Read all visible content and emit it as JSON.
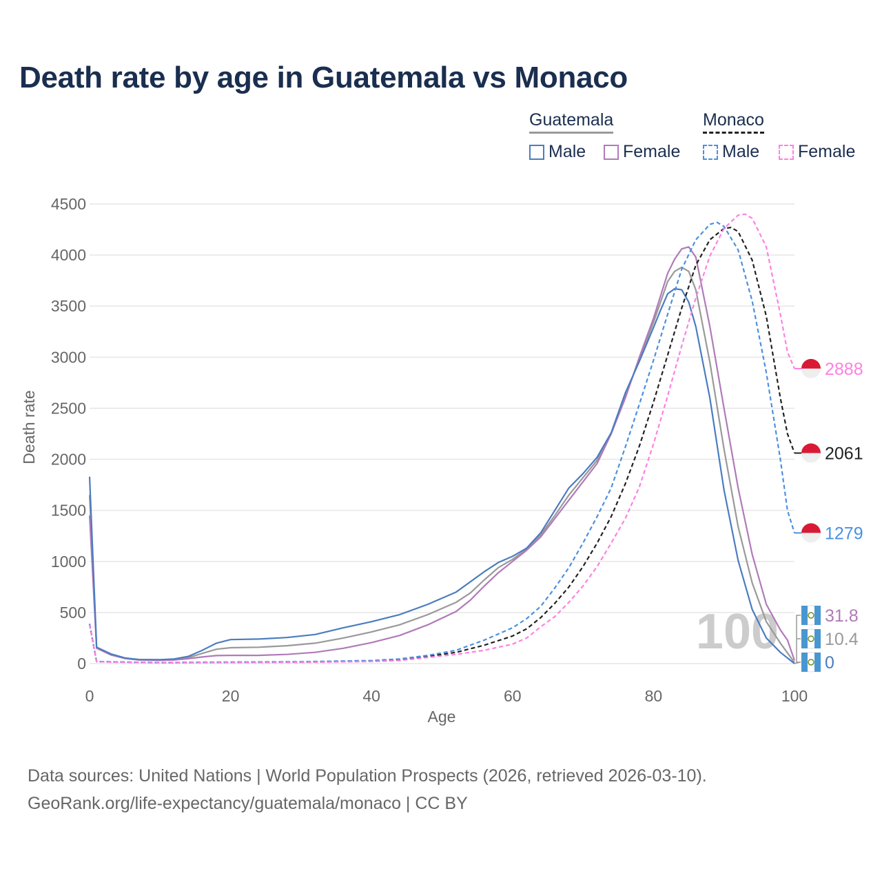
{
  "header": {
    "title": "Death rate by age in Guatemala vs Monaco"
  },
  "legend": {
    "guatemala": {
      "title": "Guatemala",
      "male": "Male",
      "female": "Female"
    },
    "monaco": {
      "title": "Monaco",
      "male": "Male",
      "female": "Female"
    }
  },
  "colors": {
    "gt_male": "#4a7cc0",
    "gt_female": "#b07ab8",
    "gt_total": "#999999",
    "mc_male": "#4a90e2",
    "mc_female": "#ff80e0",
    "mc_total": "#222222",
    "title": "#1a2e4f",
    "axis_text": "#666666",
    "grid": "#e6e6e6",
    "watermark": "#cccccc",
    "flag_mc_red": "#d91a36",
    "flag_gt_blue": "#4997d0"
  },
  "watermark": "100",
  "footer": {
    "line1": "Data sources: United Nations | World Population Prospects (2026, retrieved 2026-03-10).",
    "line2": "GeoRank.org/life-expectancy/guatemala/monaco | CC BY"
  },
  "chart_data": {
    "type": "line",
    "title": "Death rate by age in Guatemala vs Monaco",
    "xlabel": "Age",
    "ylabel": "Death rate",
    "xlim": [
      0,
      100
    ],
    "ylim": [
      0,
      4500
    ],
    "xticks": [
      0,
      20,
      40,
      60,
      80,
      100
    ],
    "yticks": [
      0,
      500,
      1000,
      1500,
      2000,
      2500,
      3000,
      3500,
      4000,
      4500
    ],
    "grid": true,
    "series": [
      {
        "name": "Guatemala Male",
        "country": "guatemala",
        "sex": "male",
        "dashed": false,
        "color": "#4a7cc0",
        "end_label": "0",
        "points": [
          [
            0,
            1830
          ],
          [
            1,
            160
          ],
          [
            3,
            95
          ],
          [
            5,
            55
          ],
          [
            7,
            40
          ],
          [
            10,
            38
          ],
          [
            12,
            45
          ],
          [
            14,
            70
          ],
          [
            16,
            130
          ],
          [
            18,
            200
          ],
          [
            20,
            235
          ],
          [
            24,
            240
          ],
          [
            28,
            255
          ],
          [
            32,
            285
          ],
          [
            36,
            350
          ],
          [
            40,
            410
          ],
          [
            44,
            480
          ],
          [
            48,
            580
          ],
          [
            52,
            700
          ],
          [
            56,
            900
          ],
          [
            58,
            990
          ],
          [
            60,
            1050
          ],
          [
            62,
            1130
          ],
          [
            64,
            1280
          ],
          [
            66,
            1500
          ],
          [
            68,
            1720
          ],
          [
            70,
            1860
          ],
          [
            72,
            2020
          ],
          [
            74,
            2260
          ],
          [
            76,
            2650
          ],
          [
            78,
            2960
          ],
          [
            80,
            3290
          ],
          [
            81,
            3460
          ],
          [
            82,
            3620
          ],
          [
            83,
            3670
          ],
          [
            84,
            3660
          ],
          [
            85,
            3540
          ],
          [
            86,
            3300
          ],
          [
            88,
            2600
          ],
          [
            90,
            1700
          ],
          [
            92,
            1010
          ],
          [
            94,
            530
          ],
          [
            96,
            250
          ],
          [
            98,
            110
          ],
          [
            100,
            0
          ]
        ]
      },
      {
        "name": "Guatemala Female",
        "country": "guatemala",
        "sex": "female",
        "dashed": false,
        "color": "#b07ab8",
        "end_label": "31.8",
        "points": [
          [
            0,
            1450
          ],
          [
            1,
            150
          ],
          [
            3,
            85
          ],
          [
            5,
            50
          ],
          [
            7,
            35
          ],
          [
            10,
            32
          ],
          [
            12,
            35
          ],
          [
            14,
            48
          ],
          [
            16,
            65
          ],
          [
            18,
            78
          ],
          [
            20,
            80
          ],
          [
            24,
            80
          ],
          [
            28,
            90
          ],
          [
            32,
            110
          ],
          [
            36,
            150
          ],
          [
            40,
            205
          ],
          [
            44,
            275
          ],
          [
            48,
            380
          ],
          [
            52,
            510
          ],
          [
            54,
            620
          ],
          [
            56,
            760
          ],
          [
            58,
            890
          ],
          [
            60,
            1000
          ],
          [
            62,
            1110
          ],
          [
            64,
            1240
          ],
          [
            66,
            1420
          ],
          [
            68,
            1600
          ],
          [
            70,
            1780
          ],
          [
            72,
            1960
          ],
          [
            74,
            2250
          ],
          [
            76,
            2600
          ],
          [
            78,
            3000
          ],
          [
            80,
            3380
          ],
          [
            82,
            3820
          ],
          [
            83,
            3960
          ],
          [
            84,
            4060
          ],
          [
            85,
            4080
          ],
          [
            86,
            3980
          ],
          [
            88,
            3300
          ],
          [
            90,
            2500
          ],
          [
            92,
            1720
          ],
          [
            94,
            1070
          ],
          [
            96,
            580
          ],
          [
            98,
            330
          ],
          [
            99,
            230
          ],
          [
            100,
            32
          ]
        ]
      },
      {
        "name": "Guatemala Total",
        "country": "guatemala",
        "sex": "total",
        "dashed": false,
        "color": "#999999",
        "end_label": "10.4",
        "points": [
          [
            0,
            1650
          ],
          [
            1,
            155
          ],
          [
            3,
            90
          ],
          [
            5,
            52
          ],
          [
            7,
            37
          ],
          [
            10,
            35
          ],
          [
            12,
            40
          ],
          [
            14,
            58
          ],
          [
            16,
            100
          ],
          [
            18,
            140
          ],
          [
            20,
            155
          ],
          [
            24,
            160
          ],
          [
            28,
            175
          ],
          [
            32,
            200
          ],
          [
            36,
            250
          ],
          [
            40,
            310
          ],
          [
            44,
            380
          ],
          [
            48,
            480
          ],
          [
            52,
            600
          ],
          [
            54,
            690
          ],
          [
            56,
            820
          ],
          [
            58,
            940
          ],
          [
            60,
            1020
          ],
          [
            62,
            1120
          ],
          [
            64,
            1260
          ],
          [
            66,
            1450
          ],
          [
            68,
            1650
          ],
          [
            70,
            1820
          ],
          [
            72,
            1990
          ],
          [
            74,
            2250
          ],
          [
            76,
            2620
          ],
          [
            78,
            2980
          ],
          [
            80,
            3340
          ],
          [
            82,
            3740
          ],
          [
            83,
            3840
          ],
          [
            84,
            3880
          ],
          [
            85,
            3840
          ],
          [
            86,
            3660
          ],
          [
            88,
            2950
          ],
          [
            90,
            2100
          ],
          [
            92,
            1340
          ],
          [
            94,
            790
          ],
          [
            96,
            410
          ],
          [
            98,
            200
          ],
          [
            100,
            10
          ]
        ]
      },
      {
        "name": "Monaco Male",
        "country": "monaco",
        "sex": "male",
        "dashed": true,
        "color": "#4a90e2",
        "end_label": "1279",
        "points": [
          [
            0,
            390
          ],
          [
            1,
            20
          ],
          [
            5,
            15
          ],
          [
            10,
            10
          ],
          [
            20,
            15
          ],
          [
            30,
            18
          ],
          [
            40,
            30
          ],
          [
            44,
            45
          ],
          [
            48,
            80
          ],
          [
            52,
            130
          ],
          [
            56,
            230
          ],
          [
            60,
            350
          ],
          [
            62,
            440
          ],
          [
            64,
            560
          ],
          [
            66,
            740
          ],
          [
            68,
            940
          ],
          [
            70,
            1180
          ],
          [
            72,
            1440
          ],
          [
            74,
            1720
          ],
          [
            76,
            2120
          ],
          [
            78,
            2540
          ],
          [
            80,
            2970
          ],
          [
            82,
            3420
          ],
          [
            84,
            3860
          ],
          [
            86,
            4150
          ],
          [
            88,
            4300
          ],
          [
            89,
            4320
          ],
          [
            90,
            4280
          ],
          [
            92,
            4050
          ],
          [
            94,
            3550
          ],
          [
            96,
            2850
          ],
          [
            98,
            2000
          ],
          [
            99,
            1500
          ],
          [
            100,
            1279
          ]
        ]
      },
      {
        "name": "Monaco Female",
        "country": "monaco",
        "sex": "female",
        "dashed": true,
        "color": "#ff80e0",
        "end_label": "2888",
        "points": [
          [
            0,
            380
          ],
          [
            1,
            18
          ],
          [
            5,
            12
          ],
          [
            10,
            8
          ],
          [
            20,
            10
          ],
          [
            30,
            12
          ],
          [
            40,
            20
          ],
          [
            44,
            30
          ],
          [
            48,
            60
          ],
          [
            52,
            90
          ],
          [
            56,
            130
          ],
          [
            60,
            190
          ],
          [
            62,
            250
          ],
          [
            64,
            360
          ],
          [
            66,
            460
          ],
          [
            68,
            600
          ],
          [
            70,
            760
          ],
          [
            72,
            950
          ],
          [
            74,
            1180
          ],
          [
            76,
            1420
          ],
          [
            78,
            1730
          ],
          [
            80,
            2150
          ],
          [
            82,
            2620
          ],
          [
            84,
            3110
          ],
          [
            86,
            3580
          ],
          [
            88,
            3990
          ],
          [
            90,
            4260
          ],
          [
            92,
            4390
          ],
          [
            93,
            4400
          ],
          [
            94,
            4360
          ],
          [
            96,
            4080
          ],
          [
            98,
            3420
          ],
          [
            99,
            3050
          ],
          [
            100,
            2888
          ]
        ]
      },
      {
        "name": "Monaco Total",
        "country": "monaco",
        "sex": "total",
        "dashed": true,
        "color": "#222222",
        "end_label": "2061",
        "points": [
          [
            0,
            385
          ],
          [
            1,
            19
          ],
          [
            5,
            14
          ],
          [
            10,
            9
          ],
          [
            20,
            12
          ],
          [
            30,
            15
          ],
          [
            40,
            25
          ],
          [
            44,
            38
          ],
          [
            48,
            70
          ],
          [
            52,
            110
          ],
          [
            56,
            180
          ],
          [
            60,
            270
          ],
          [
            62,
            340
          ],
          [
            64,
            450
          ],
          [
            66,
            590
          ],
          [
            68,
            750
          ],
          [
            70,
            950
          ],
          [
            72,
            1180
          ],
          [
            74,
            1440
          ],
          [
            76,
            1760
          ],
          [
            78,
            2130
          ],
          [
            80,
            2560
          ],
          [
            82,
            3020
          ],
          [
            84,
            3480
          ],
          [
            86,
            3900
          ],
          [
            88,
            4150
          ],
          [
            90,
            4260
          ],
          [
            91,
            4270
          ],
          [
            92,
            4230
          ],
          [
            94,
            3950
          ],
          [
            96,
            3400
          ],
          [
            98,
            2600
          ],
          [
            99,
            2250
          ],
          [
            100,
            2061
          ]
        ]
      }
    ]
  }
}
